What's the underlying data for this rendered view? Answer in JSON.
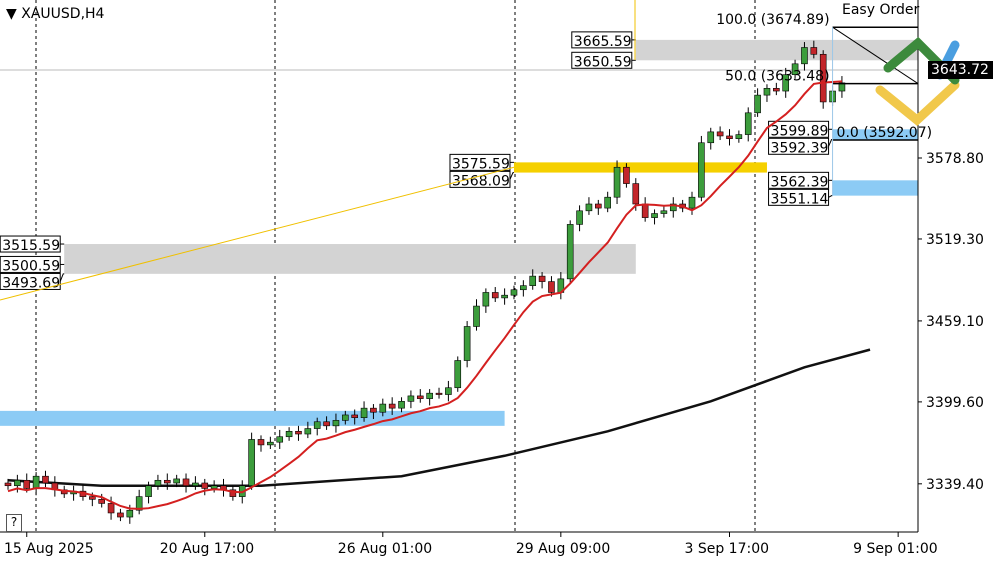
{
  "symbol": "XAUUSD,H4",
  "easy_order": "Easy Order",
  "current_price": "3643.72",
  "help": "?",
  "colors": {
    "bull": "#3c9d3c",
    "bear": "#c3262b",
    "ma_fast": "#d42020",
    "ma_slow": "#111111",
    "zone_grey": "#d3d3d3",
    "zone_yellow": "#f5d000",
    "zone_blue": "#8ccbf5"
  },
  "chart_data": {
    "type": "candlestick",
    "ylim": [
      3310,
      3690
    ],
    "y_ticks": [
      "3578.80",
      "3519.30",
      "3459.10",
      "3399.60",
      "3339.40"
    ],
    "y_tick_values": [
      3578.8,
      3519.3,
      3459.1,
      3399.6,
      3339.4
    ],
    "x_ticks": [
      "15 Aug 2025",
      "20 Aug 17:00",
      "26 Aug 01:00",
      "29 Aug 09:00",
      "3 Sep 17:00",
      "9 Sep 01:00"
    ],
    "x_tick_index": [
      2,
      21,
      40,
      59,
      77,
      95
    ],
    "close": [
      3338,
      3342,
      3336,
      3345,
      3340,
      3335,
      3332,
      3334,
      3330,
      3328,
      3325,
      3318,
      3315,
      3320,
      3330,
      3338,
      3342,
      3340,
      3343,
      3338,
      3340,
      3336,
      3338,
      3335,
      3330,
      3338,
      3372,
      3368,
      3370,
      3374,
      3378,
      3376,
      3380,
      3385,
      3382,
      3386,
      3390,
      3388,
      3395,
      3392,
      3398,
      3395,
      3400,
      3404,
      3402,
      3406,
      3405,
      3410,
      3430,
      3455,
      3470,
      3480,
      3476,
      3478,
      3482,
      3485,
      3492,
      3488,
      3480,
      3490,
      3530,
      3540,
      3545,
      3542,
      3550,
      3572,
      3560,
      3545,
      3535,
      3538,
      3540,
      3545,
      3542,
      3550,
      3590,
      3598,
      3595,
      3593,
      3596,
      3612,
      3625,
      3630,
      3628,
      3640,
      3648,
      3660,
      3655,
      3620,
      3628,
      3634
    ],
    "ma_slow": [
      [
        0,
        3342
      ],
      [
        10,
        3338
      ],
      [
        27,
        3338
      ],
      [
        42,
        3345
      ],
      [
        53,
        3360
      ],
      [
        64,
        3378
      ],
      [
        75,
        3400
      ],
      [
        85,
        3425
      ],
      [
        92,
        3438
      ]
    ],
    "zones": [
      {
        "top": 3665.59,
        "bottom": 3650.59,
        "from": 67,
        "to": null,
        "color": "zone_grey",
        "labels": [
          "3665.59",
          "3650.59"
        ]
      },
      {
        "top": 3515.59,
        "bottom": 3493.69,
        "from": 6,
        "to": 67,
        "color": "zone_grey",
        "labels": [
          "3515.59",
          "3500.59",
          "3493.69"
        ]
      },
      {
        "top": 3575.59,
        "bottom": 3568.09,
        "from": 54,
        "to": 81,
        "color": "zone_yellow",
        "labels": [
          "3575.59",
          "3568.09"
        ]
      },
      {
        "top": 3393,
        "bottom": 3382,
        "from": -1,
        "to": 53,
        "color": "zone_blue",
        "labels": []
      },
      {
        "top": 3599.89,
        "bottom": 3592.39,
        "from": 88,
        "to": null,
        "color": "zone_blue",
        "labels": [
          "3599.89",
          "3592.39"
        ]
      },
      {
        "top": 3562.39,
        "bottom": 3551.14,
        "from": 88,
        "to": null,
        "color": "zone_blue",
        "labels": [
          "3562.39",
          "3551.14"
        ]
      }
    ],
    "fibo": [
      {
        "level": "100.0 (3674.89)",
        "price": 3674.89
      },
      {
        "level": "50.0 (3633.48)",
        "price": 3633.48
      },
      {
        "level": "0.0 (3592.07)",
        "price": 3592.07
      }
    ]
  }
}
